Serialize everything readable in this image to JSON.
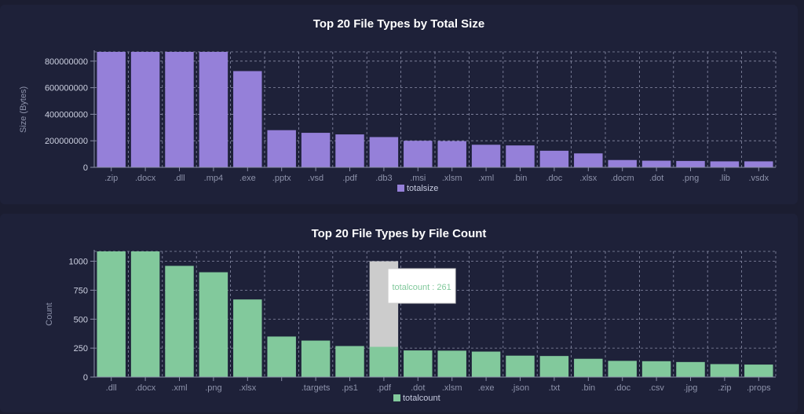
{
  "chart_data": [
    {
      "type": "bar",
      "title": "Top 20 File Types by Total Size",
      "xlabel": "",
      "ylabel": "Size (Bytes)",
      "ylim": [
        0,
        870000000
      ],
      "yticks": [
        0,
        200000000,
        400000000,
        600000000,
        800000000
      ],
      "ytick_labels": [
        "0",
        "200000000",
        "400000000",
        "600000000",
        "800000000"
      ],
      "categories": [
        ".zip",
        ".docx",
        ".dll",
        ".mp4",
        ".exe",
        ".pptx",
        ".vsd",
        ".pdf",
        ".db3",
        ".msi",
        ".xlsm",
        ".xml",
        ".bin",
        ".doc",
        ".xlsx",
        ".docm",
        ".dot",
        ".png",
        ".lib",
        ".vsdx"
      ],
      "series": [
        {
          "name": "totalsize",
          "color": "#9580d9",
          "values": [
            870000000,
            870000000,
            870000000,
            870000000,
            725000000,
            280000000,
            260000000,
            248000000,
            228000000,
            200000000,
            198000000,
            170000000,
            165000000,
            125000000,
            105000000,
            55000000,
            50000000,
            48000000,
            45000000,
            45000000
          ]
        }
      ],
      "grid": true,
      "legend": "bottom-center"
    },
    {
      "type": "bar",
      "title": "Top 20 File Types by File Count",
      "xlabel": "",
      "ylabel": "Count",
      "ylim": [
        0,
        1085
      ],
      "yticks": [
        0,
        250,
        500,
        750,
        1000
      ],
      "ytick_labels": [
        "0",
        "250",
        "500",
        "750",
        "1000"
      ],
      "categories": [
        ".dll",
        ".docx",
        ".xml",
        ".png",
        ".xlsx",
        "",
        ".targets",
        ".ps1",
        ".pdf",
        ".dot",
        ".xlsm",
        ".exe",
        ".json",
        ".txt",
        ".bin",
        ".doc",
        ".csv",
        ".jpg",
        ".zip",
        ".props"
      ],
      "series": [
        {
          "name": "totalcount",
          "color": "#82c99c",
          "values": [
            1085,
            1085,
            960,
            905,
            670,
            350,
            315,
            268,
            261,
            230,
            228,
            220,
            185,
            182,
            158,
            140,
            137,
            130,
            112,
            108
          ]
        }
      ],
      "grid": true,
      "legend": "bottom-center",
      "highlight": {
        "index": 8,
        "band_color": "#cccccc",
        "tooltip": "totalcount : 261"
      }
    }
  ]
}
